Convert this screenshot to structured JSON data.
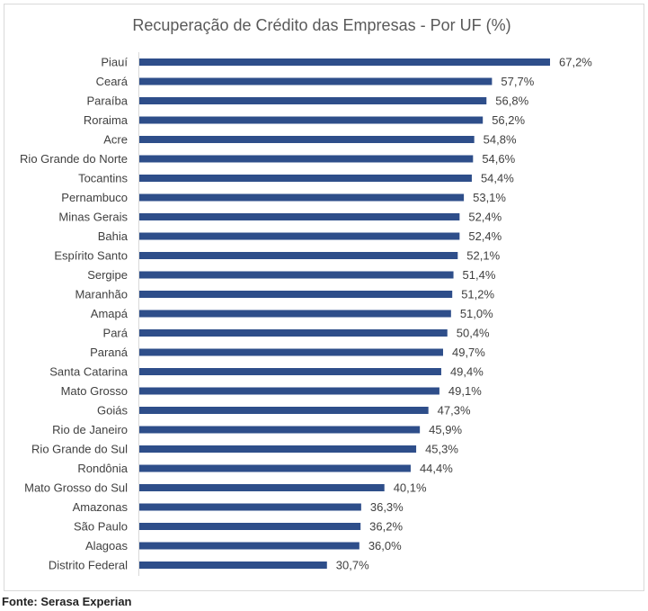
{
  "source": "Fonte: Serasa Experian",
  "colors": {
    "bar": "#2e4e8a",
    "text": "#404040",
    "title": "#595959",
    "border": "#d9d9d9"
  },
  "chart_data": {
    "type": "bar",
    "orientation": "horizontal",
    "title": "Recuperação de Crédito das Empresas - Por UF (%)",
    "xlabel": "",
    "ylabel": "",
    "xlim": [
      0,
      70
    ],
    "grid": false,
    "legend": "none",
    "categories": [
      "Piauí",
      "Ceará",
      "Paraíba",
      "Roraima",
      "Acre",
      "Rio Grande do Norte",
      "Tocantins",
      "Pernambuco",
      "Minas Gerais",
      "Bahia",
      "Espírito Santo",
      "Sergipe",
      "Maranhão",
      "Amapá",
      "Pará",
      "Paraná",
      "Santa Catarina",
      "Mato Grosso",
      "Goiás",
      "Rio de Janeiro",
      "Rio Grande do Sul",
      "Rondônia",
      "Mato Grosso do Sul",
      "Amazonas",
      "São Paulo",
      "Alagoas",
      "Distrito Federal"
    ],
    "values": [
      67.2,
      57.7,
      56.8,
      56.2,
      54.8,
      54.6,
      54.4,
      53.1,
      52.4,
      52.4,
      52.1,
      51.4,
      51.2,
      51.0,
      50.4,
      49.7,
      49.4,
      49.1,
      47.3,
      45.9,
      45.3,
      44.4,
      40.1,
      36.3,
      36.2,
      36.0,
      30.7
    ],
    "data_labels": [
      "67,2%",
      "57,7%",
      "56,8%",
      "56,2%",
      "54,8%",
      "54,6%",
      "54,4%",
      "53,1%",
      "52,4%",
      "52,4%",
      "52,1%",
      "51,4%",
      "51,2%",
      "51,0%",
      "50,4%",
      "49,7%",
      "49,4%",
      "49,1%",
      "47,3%",
      "45,9%",
      "45,3%",
      "44,4%",
      "40,1%",
      "36,3%",
      "36,2%",
      "36,0%",
      "30,7%"
    ]
  }
}
